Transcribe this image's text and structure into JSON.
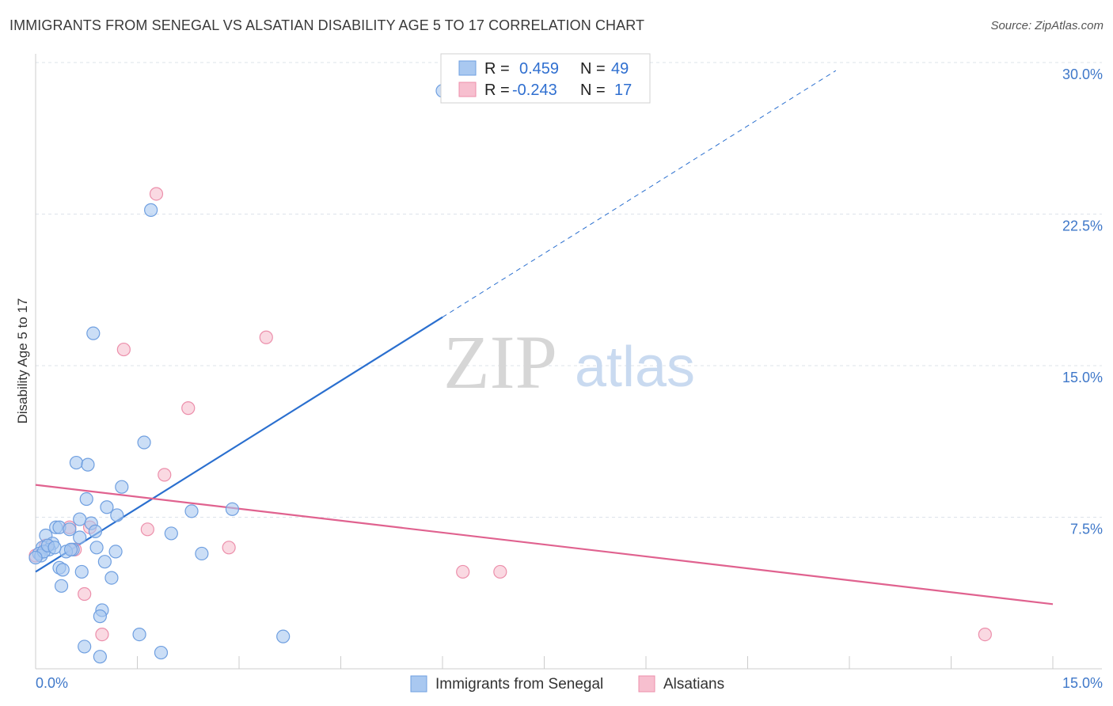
{
  "header": {
    "title": "IMMIGRANTS FROM SENEGAL VS ALSATIAN DISABILITY AGE 5 TO 17 CORRELATION CHART",
    "source": "Source: ZipAtlas.com"
  },
  "watermark": {
    "zip": "ZIP",
    "atlas": "atlas"
  },
  "colors": {
    "blue_fill": "#a9c8f0",
    "blue_stroke": "#6f9fe0",
    "blue_line": "#2a6fcf",
    "pink_fill": "#f7bfcf",
    "pink_stroke": "#ec8fab",
    "pink_line": "#e0628f",
    "tick_text": "#3f78c9",
    "grid": "#dde3ea"
  },
  "legend": {
    "r_label": "R =",
    "n_label": "N =",
    "rows": [
      {
        "series": "blue",
        "r": "0.459",
        "n": "49"
      },
      {
        "series": "pink",
        "r": "-0.243",
        "n": "17"
      }
    ]
  },
  "chart_data": {
    "type": "scatter",
    "title": "IMMIGRANTS FROM SENEGAL VS ALSATIAN DISABILITY AGE 5 TO 17 CORRELATION CHART",
    "xlabel": "",
    "ylabel": "Disability Age 5 to 17",
    "xlim": [
      0,
      15
    ],
    "ylim": [
      0,
      30
    ],
    "x_tick_labels": [
      "0.0%",
      "15.0%"
    ],
    "y_ticks": [
      7.5,
      15.0,
      22.5,
      30.0
    ],
    "y_tick_labels": [
      "7.5%",
      "15.0%",
      "22.5%",
      "30.0%"
    ],
    "grid": true,
    "legend_position": "bottom",
    "series": [
      {
        "name": "Immigrants from Senegal",
        "color": "#a9c8f0",
        "trend": {
          "x0": 0.0,
          "y0": 4.8,
          "x1": 6.0,
          "y1": 17.4,
          "dashed_to_x": 11.8,
          "dashed_to_y": 29.6
        },
        "points": [
          [
            6.0,
            28.6
          ],
          [
            1.7,
            22.7
          ],
          [
            0.85,
            16.6
          ],
          [
            1.6,
            11.2
          ],
          [
            0.6,
            10.2
          ],
          [
            0.77,
            10.1
          ],
          [
            1.27,
            9.0
          ],
          [
            0.75,
            8.4
          ],
          [
            1.05,
            8.0
          ],
          [
            1.2,
            7.6
          ],
          [
            2.3,
            7.8
          ],
          [
            2.9,
            7.9
          ],
          [
            0.65,
            7.4
          ],
          [
            0.82,
            7.2
          ],
          [
            0.3,
            7.0
          ],
          [
            0.35,
            7.0
          ],
          [
            0.5,
            6.9
          ],
          [
            2.0,
            6.7
          ],
          [
            0.15,
            6.6
          ],
          [
            0.25,
            6.2
          ],
          [
            0.1,
            6.0
          ],
          [
            0.2,
            5.9
          ],
          [
            0.55,
            5.9
          ],
          [
            0.65,
            6.5
          ],
          [
            0.88,
            6.8
          ],
          [
            0.9,
            6.0
          ],
          [
            0.45,
            5.8
          ],
          [
            0.52,
            5.9
          ],
          [
            1.18,
            5.8
          ],
          [
            2.45,
            5.7
          ],
          [
            0.05,
            5.7
          ],
          [
            0.08,
            5.6
          ],
          [
            0.12,
            5.8
          ],
          [
            0.0,
            5.5
          ],
          [
            1.02,
            5.3
          ],
          [
            0.35,
            5.0
          ],
          [
            0.4,
            4.9
          ],
          [
            0.68,
            4.8
          ],
          [
            1.12,
            4.5
          ],
          [
            0.38,
            4.1
          ],
          [
            0.98,
            2.9
          ],
          [
            0.95,
            2.6
          ],
          [
            1.53,
            1.7
          ],
          [
            3.65,
            1.6
          ],
          [
            0.72,
            1.1
          ],
          [
            1.85,
            0.8
          ],
          [
            0.95,
            0.6
          ],
          [
            0.18,
            6.1
          ],
          [
            0.28,
            6.0
          ]
        ]
      },
      {
        "name": "Alsatians",
        "color": "#f7bfcf",
        "trend": {
          "x0": 0.0,
          "y0": 9.1,
          "x1": 15.0,
          "y1": 3.2
        },
        "points": [
          [
            1.78,
            23.5
          ],
          [
            3.4,
            16.4
          ],
          [
            1.3,
            15.8
          ],
          [
            2.25,
            12.9
          ],
          [
            1.9,
            9.6
          ],
          [
            0.8,
            7.0
          ],
          [
            1.65,
            6.9
          ],
          [
            0.5,
            7.0
          ],
          [
            2.85,
            6.0
          ],
          [
            0.58,
            5.9
          ],
          [
            0.15,
            6.1
          ],
          [
            0.0,
            5.6
          ],
          [
            0.72,
            3.7
          ],
          [
            0.98,
            1.7
          ],
          [
            6.3,
            4.8
          ],
          [
            6.85,
            4.8
          ],
          [
            14.0,
            1.7
          ]
        ]
      }
    ]
  }
}
